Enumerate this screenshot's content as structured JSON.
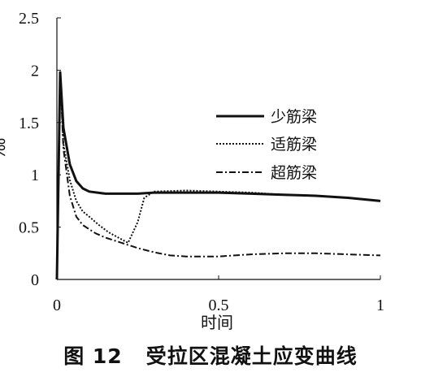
{
  "caption": "图 12   受拉区混凝土应变曲线",
  "chart_data": {
    "type": "line",
    "xlabel": "时间",
    "ylabel": "‰",
    "xlim": [
      0,
      1
    ],
    "ylim": [
      0,
      2.5
    ],
    "x_ticks": [
      "0",
      "0.5",
      "1"
    ],
    "y_ticks": [
      "0",
      "0.5",
      "1",
      "1.5",
      "2",
      "2.5"
    ],
    "legend_position": "center-right",
    "series": [
      {
        "name": "少筋梁",
        "style": "solid",
        "x": [
          0,
          0.01,
          0.02,
          0.04,
          0.06,
          0.08,
          0.1,
          0.15,
          0.2,
          0.25,
          0.3,
          0.4,
          0.5,
          0.6,
          0.7,
          0.8,
          0.9,
          1.0
        ],
        "y": [
          0,
          1.98,
          1.45,
          1.1,
          0.94,
          0.87,
          0.84,
          0.82,
          0.82,
          0.82,
          0.83,
          0.83,
          0.83,
          0.82,
          0.81,
          0.8,
          0.78,
          0.75
        ]
      },
      {
        "name": "适筋梁",
        "style": "dotted",
        "x": [
          0,
          0.01,
          0.02,
          0.04,
          0.06,
          0.08,
          0.1,
          0.13,
          0.16,
          0.19,
          0.22,
          0.25,
          0.27,
          0.3,
          0.4,
          0.5,
          0.6,
          0.7,
          0.8,
          0.9,
          1.0
        ],
        "y": [
          0,
          1.98,
          1.3,
          0.95,
          0.75,
          0.65,
          0.6,
          0.52,
          0.45,
          0.4,
          0.35,
          0.55,
          0.78,
          0.84,
          0.85,
          0.84,
          0.83,
          0.81,
          0.8,
          0.78,
          0.75
        ]
      },
      {
        "name": "超筋梁",
        "style": "dashdot",
        "x": [
          0,
          0.01,
          0.02,
          0.04,
          0.06,
          0.08,
          0.1,
          0.12,
          0.15,
          0.2,
          0.25,
          0.3,
          0.35,
          0.4,
          0.5,
          0.6,
          0.7,
          0.8,
          0.9,
          1.0
        ],
        "y": [
          0,
          1.98,
          1.25,
          0.8,
          0.6,
          0.52,
          0.48,
          0.44,
          0.4,
          0.35,
          0.3,
          0.26,
          0.23,
          0.22,
          0.22,
          0.24,
          0.25,
          0.25,
          0.24,
          0.23
        ]
      }
    ]
  }
}
